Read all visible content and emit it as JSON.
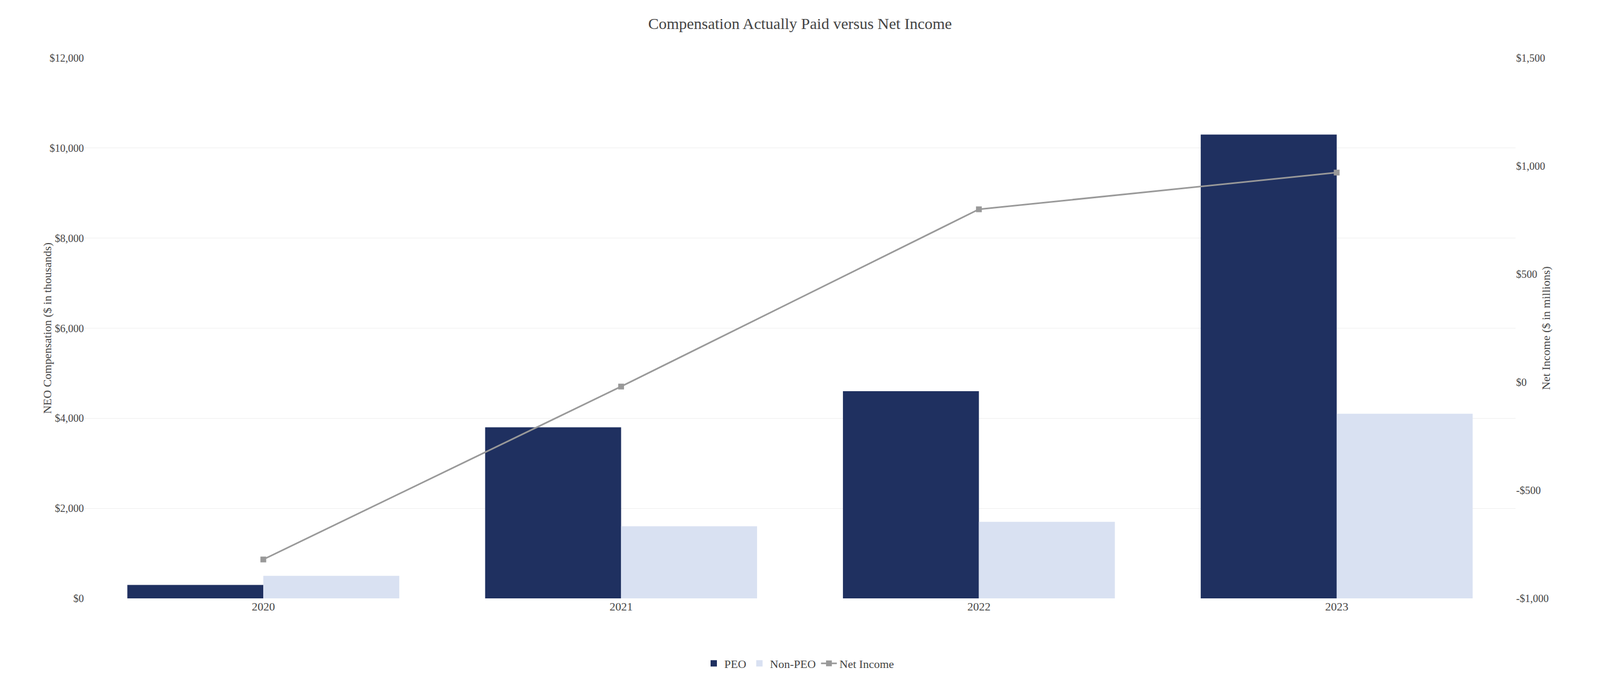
{
  "chart_data": {
    "type": "bar",
    "title": "Compensation Actually Paid versus Net Income",
    "categories": [
      "2020",
      "2021",
      "2022",
      "2023"
    ],
    "series": [
      {
        "name": "PEO",
        "type": "bar",
        "color": "#1f3060",
        "values": [
          300,
          3800,
          4600,
          10300
        ]
      },
      {
        "name": "Non-PEO",
        "type": "bar",
        "color": "#d9e1f2",
        "values": [
          500,
          1600,
          1700,
          4100
        ]
      },
      {
        "name": "Net Income",
        "type": "line",
        "axis": "y2",
        "color": "#999999",
        "marker": "square",
        "line_style": "solid",
        "values": [
          -820,
          -20,
          800,
          970
        ]
      }
    ],
    "y_label": "NEO Compensation ($ in thousands)",
    "y2_label": "Net Income ($ in millions)",
    "ylim": [
      0,
      12000
    ],
    "yticks": [
      {
        "value": 0,
        "label": "$0"
      },
      {
        "value": 2000,
        "label": "$2,000"
      },
      {
        "value": 4000,
        "label": "$4,000"
      },
      {
        "value": 6000,
        "label": "$6,000"
      },
      {
        "value": 8000,
        "label": "$8,000"
      },
      {
        "value": 10000,
        "label": "$10,000"
      },
      {
        "value": 12000,
        "label": "$12,000"
      }
    ],
    "y2lim": [
      -1000,
      1500
    ],
    "y2ticks": [
      {
        "value": -1000,
        "label": "-$1,000"
      },
      {
        "value": -500,
        "label": "-$500"
      },
      {
        "value": 0,
        "label": "$0"
      },
      {
        "value": 500,
        "label": "$500"
      },
      {
        "value": 1000,
        "label": "$1,000"
      },
      {
        "value": 1500,
        "label": "$1,500"
      }
    ],
    "grid": true,
    "legend": "bottom"
  }
}
